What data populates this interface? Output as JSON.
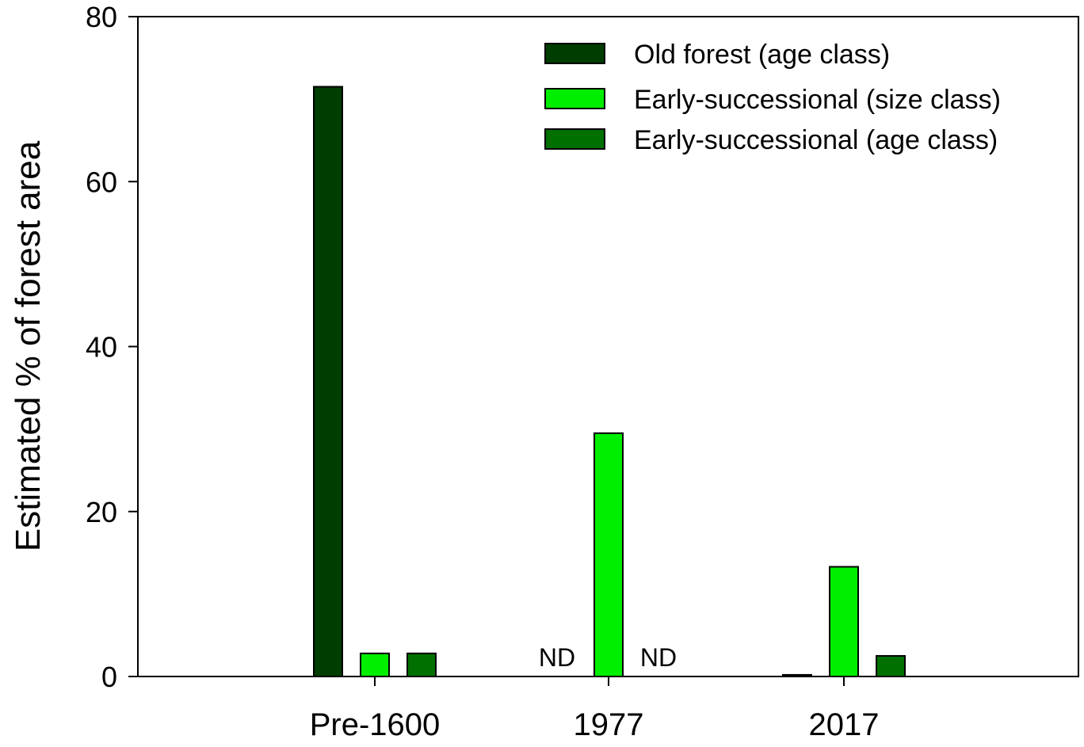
{
  "chart_data": {
    "type": "bar",
    "title": "",
    "xlabel": "",
    "ylabel": "Estimated % of forest area",
    "ylim": [
      0,
      80
    ],
    "yticks": [
      0,
      20,
      40,
      60,
      80
    ],
    "grid": false,
    "legend_position": "upper right (inside)",
    "categories": [
      "Pre-1600",
      "1977",
      "2017"
    ],
    "series": [
      {
        "name": "Old forest (age class)",
        "color": "#003d00",
        "values": [
          71.5,
          null,
          0.2
        ]
      },
      {
        "name": "Early-successional (size class)",
        "color": "#00ee00",
        "values": [
          2.8,
          29.5,
          13.3
        ]
      },
      {
        "name": "Early-successional (age class)",
        "color": "#007000",
        "values": [
          2.8,
          null,
          2.5
        ]
      }
    ],
    "annotations": [
      {
        "text": "ND",
        "category": "1977",
        "series": "Old forest (age class)"
      },
      {
        "text": "ND",
        "category": "1977",
        "series": "Early-successional (age class)"
      }
    ]
  }
}
